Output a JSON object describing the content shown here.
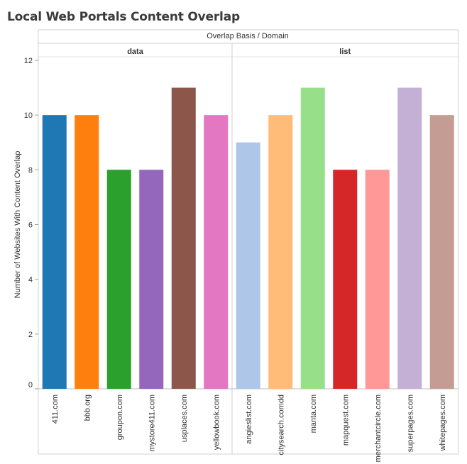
{
  "title": "Local Web Portals Content Overlap",
  "header": {
    "text": "Overlap Basis  /  Domain"
  },
  "chart_data": {
    "type": "bar",
    "title": "Local Web Portals Content Overlap",
    "column_header": "Overlap Basis  /  Domain",
    "ylabel": "Number of Websites With Content Overlap",
    "ylim": [
      0,
      12
    ],
    "yticks": [
      0,
      2,
      4,
      6,
      8,
      10,
      12
    ],
    "groups": [
      {
        "name": "data",
        "categories": [
          "411.com",
          "bbb.org",
          "groupon.com",
          "mystore411.com",
          "usplaces.com",
          "yellowbook.com"
        ],
        "values": [
          10,
          10,
          8,
          8,
          11,
          10
        ],
        "colors": [
          "#1f77b4",
          "#ff7f0e",
          "#2ca02c",
          "#9467bd",
          "#8c564b",
          "#e377c2"
        ]
      },
      {
        "name": "list",
        "categories": [
          "angieslist.com",
          "citysearch.comdd",
          "manta.com",
          "mapquest.com",
          "merchantcircle.com",
          "superpages.com",
          "whitepages.com"
        ],
        "values": [
          9,
          10,
          11,
          8,
          8,
          11,
          10
        ],
        "colors": [
          "#aec7e8",
          "#ffbb78",
          "#98df8a",
          "#d62728",
          "#ff9896",
          "#c5b0d5",
          "#c49c94"
        ]
      }
    ]
  }
}
